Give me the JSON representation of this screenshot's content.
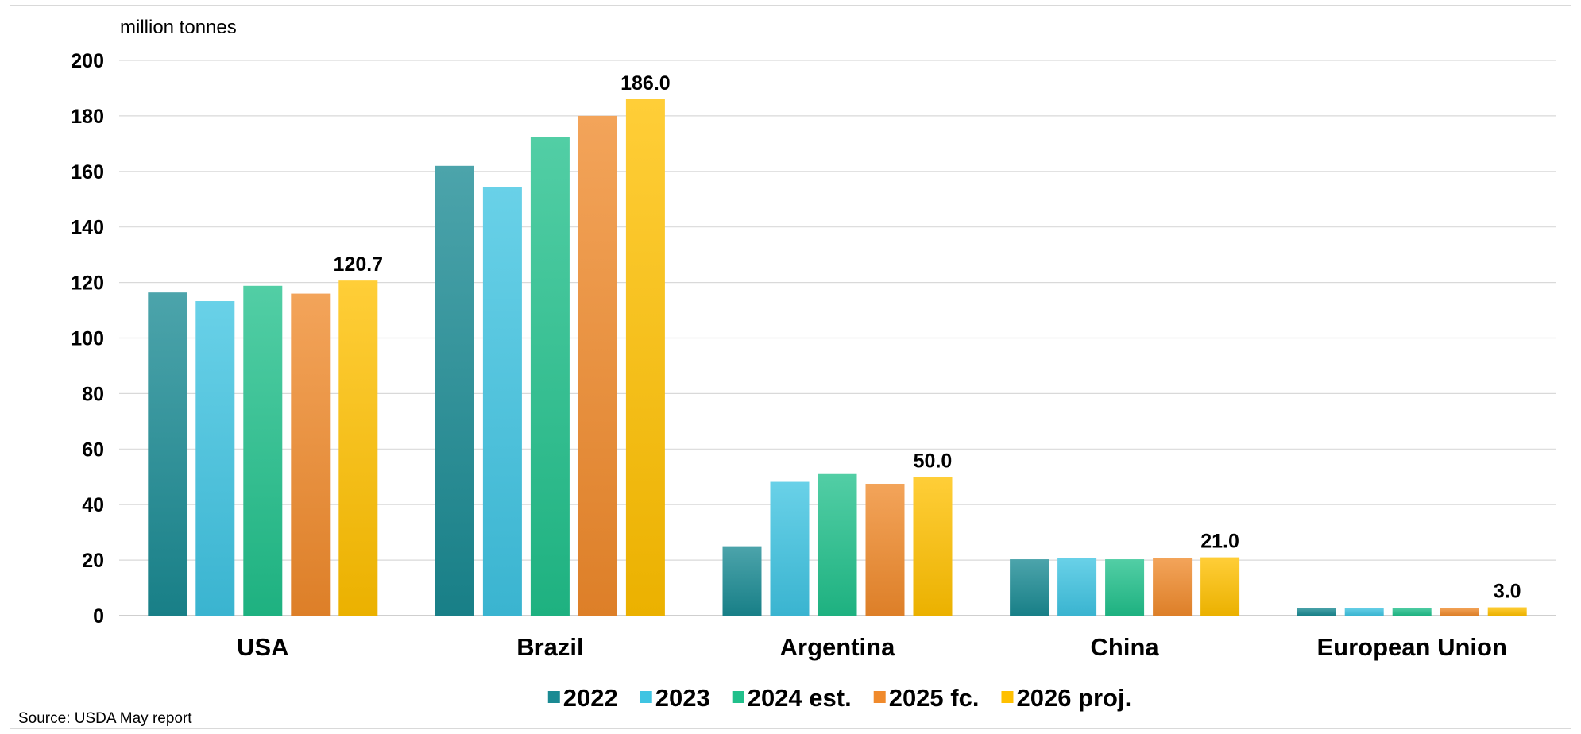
{
  "source": "Source:  USDA May report",
  "chart_data": {
    "type": "bar",
    "ylabel": "million tonnes",
    "ylim": [
      0,
      200
    ],
    "yticks": [
      0,
      20,
      40,
      60,
      80,
      100,
      120,
      140,
      160,
      180,
      200
    ],
    "grid": true,
    "legend_position": "bottom",
    "categories": [
      "USA",
      "Brazil",
      "Argentina",
      "China",
      "European Union"
    ],
    "series": [
      {
        "name": "2022",
        "color": "#1a8a93",
        "values": [
          116.4,
          162.0,
          25.0,
          20.3,
          2.8
        ]
      },
      {
        "name": "2023",
        "color": "#3fc4e2",
        "values": [
          113.3,
          154.5,
          48.2,
          20.8,
          2.8
        ]
      },
      {
        "name": "2024 est.",
        "color": "#21c08b",
        "values": [
          118.8,
          172.4,
          51.0,
          20.3,
          2.8
        ]
      },
      {
        "name": "2025 fc.",
        "color": "#f08a2c",
        "values": [
          116.0,
          180.0,
          47.5,
          20.7,
          2.8
        ]
      },
      {
        "name": "2026 proj.",
        "color": "#ffc000",
        "values": [
          120.7,
          186.0,
          50.0,
          21.0,
          3.0
        ]
      }
    ],
    "data_labels": [
      "120.7",
      "186.0",
      "50.0",
      "21.0",
      "3.0"
    ]
  }
}
